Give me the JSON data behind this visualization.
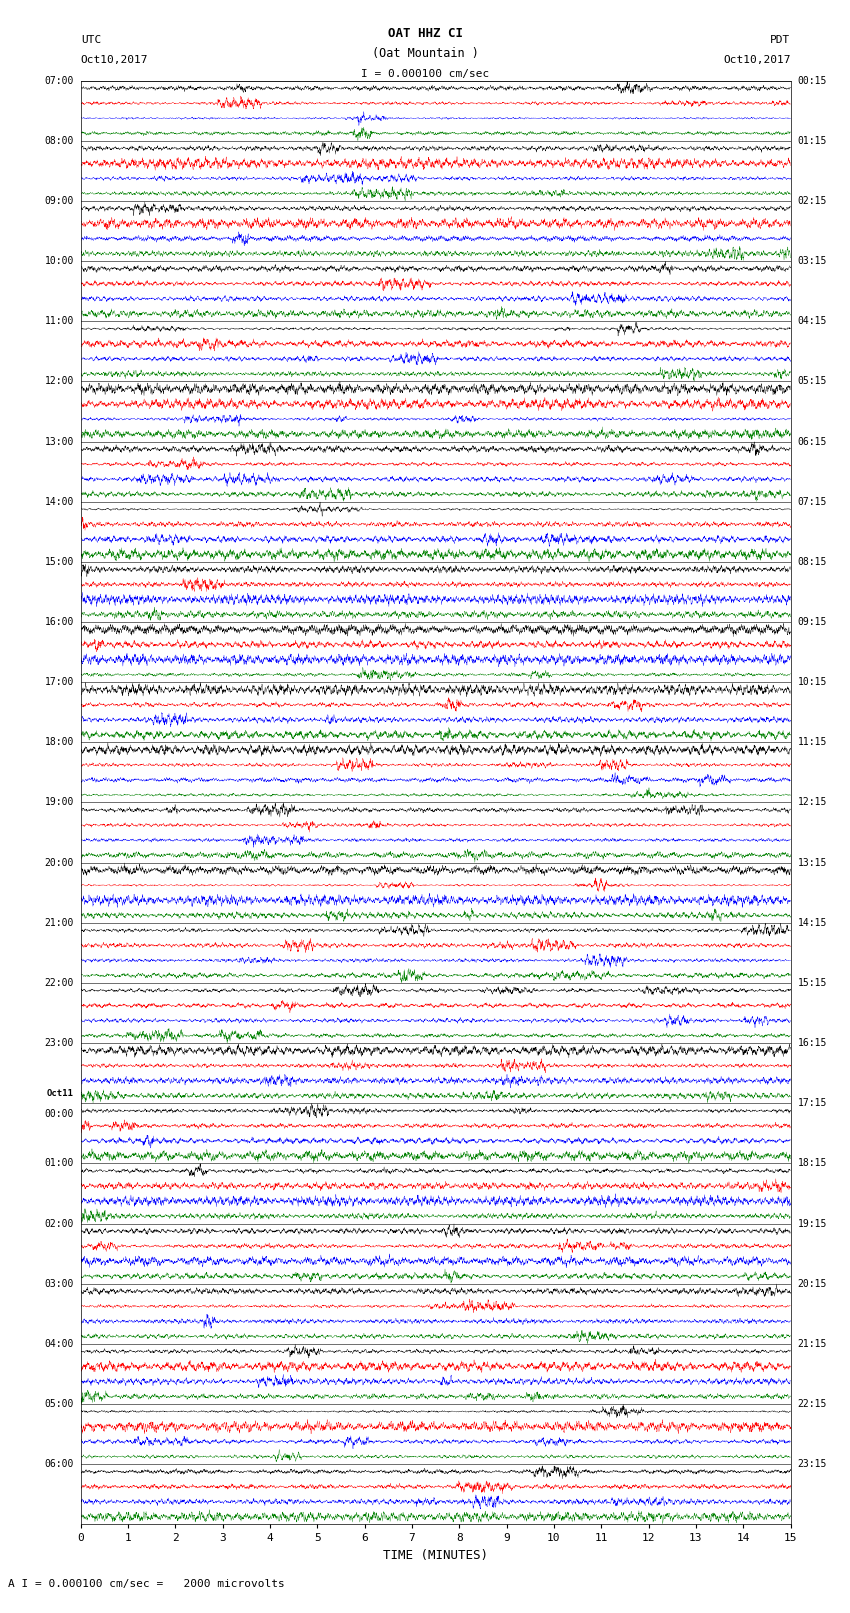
{
  "title_line1": "OAT HHZ CI",
  "title_line2": "(Oat Mountain )",
  "title_scale": "I = 0.000100 cm/sec",
  "left_label_top": "UTC",
  "left_label_date": "Oct10,2017",
  "right_label_top": "PDT",
  "right_label_date": "Oct10,2017",
  "bottom_label": "TIME (MINUTES)",
  "bottom_note": "A I = 0.000100 cm/sec =   2000 microvolts",
  "utc_times": [
    "07:00",
    "08:00",
    "09:00",
    "10:00",
    "11:00",
    "12:00",
    "13:00",
    "14:00",
    "15:00",
    "16:00",
    "17:00",
    "18:00",
    "19:00",
    "20:00",
    "21:00",
    "22:00",
    "23:00",
    "Oct11\n00:00",
    "01:00",
    "02:00",
    "03:00",
    "04:00",
    "05:00",
    "06:00"
  ],
  "pdt_times": [
    "00:15",
    "01:15",
    "02:15",
    "03:15",
    "04:15",
    "05:15",
    "06:15",
    "07:15",
    "08:15",
    "09:15",
    "10:15",
    "11:15",
    "12:15",
    "13:15",
    "14:15",
    "15:15",
    "16:15",
    "17:15",
    "18:15",
    "19:15",
    "20:15",
    "21:15",
    "22:15",
    "23:15"
  ],
  "n_rows": 24,
  "n_cols": 15,
  "sub_colors": [
    "black",
    "red",
    "blue",
    "green"
  ],
  "fig_width": 8.5,
  "fig_height": 16.13,
  "dpi": 100,
  "x_ticks": [
    0,
    1,
    2,
    3,
    4,
    5,
    6,
    7,
    8,
    9,
    10,
    11,
    12,
    13,
    14,
    15
  ],
  "xlim": [
    0,
    15
  ],
  "bg_color": "white",
  "n_sub_rows": 4
}
